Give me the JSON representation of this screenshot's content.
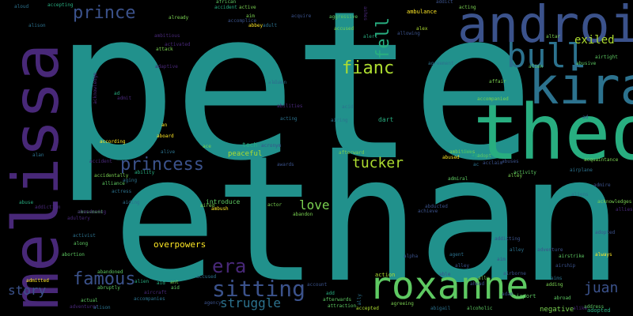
{
  "words": {
    "pete": "pete",
    "ethan": "ethan",
    "melissa": "melissa",
    "theo": "theo",
    "android": "android",
    "kira": "kira",
    "roxanne": "roxanne",
    "bull": "bull",
    "prince": "prince",
    "princess": "princess",
    "sitting": "sitting",
    "famous": "famous",
    "fianc": "fianc",
    "fell": "fell",
    "tucker": "tucker",
    "era": "era",
    "story": "story",
    "love": "love",
    "juan": "juan",
    "struggle": "struggle",
    "exiled": "exiled",
    "overpowers": "overpowers",
    "peaceful": "peaceful",
    "negative": "negative",
    "tech": "tech",
    "dart": "dart",
    "introduce": "introduce",
    "adopted": "adopted",
    "action": "action",
    "airport": "airport",
    "ambulance": "ambulance",
    "admiral": "admiral",
    "alley": "alley",
    "aired": "aired",
    "aircraft": "aircraft",
    "already": "already",
    "address": "address",
    "activist": "activist",
    "agent": "agent",
    "alive": "alive",
    "actor": "actor",
    "accepted": "accepted",
    "abandoned": "abandoned",
    "abuse": "abuse",
    "accidentally": "accidentally",
    "ability": "ability",
    "african": "african",
    "accident": "accident",
    "active": "active",
    "aggressive": "aggressive",
    "alert": "alert",
    "accused": "accused",
    "abbey": "abbey",
    "adult": "adult",
    "alex": "alex",
    "altar": "altar",
    "abusive": "abusive",
    "agreement": "agreement",
    "affair": "affair",
    "accompanied": "accompanied",
    "acquaintance": "acquaintance",
    "airplane": "airplane",
    "acknowledges": "acknowledges",
    "addicting": "addicting",
    "adventure": "adventure",
    "airstrike": "airstrike",
    "always": "always",
    "abortion": "abortion",
    "admitted": "admitted",
    "ambitious": "ambitious",
    "abused": "abused",
    "activity": "activity",
    "aloud": "aloud",
    "accepting": "accepting",
    "airtight": "airtight",
    "abandon": "abandon",
    "ago": "ago",
    "adding": "adding",
    "alien": "alien",
    "attack": "attack",
    "according": "according",
    "abroad": "abroad",
    "amusement": "amusement",
    "alliance": "alliance",
    "aboard": "aboard",
    "aiding": "aiding",
    "ambush": "ambush",
    "alien2": "alien",
    "adds": "adds",
    "adopt": "adopt",
    "acting": "acting",
    "attraction": "attraction",
    "agreeing": "agreeing",
    "abigail": "abigail",
    "alcoholic": "alcoholic",
    "afterwards": "afterwards",
    "ally": "ally",
    "afterward": "afterward",
    "ace": "ace",
    "aid": "aid",
    "ad": "ad",
    "an": "an",
    "aim": "aim",
    "ant": "ant",
    "ally2": "ally",
    "ac": "ac",
    "actress": "actress",
    "aging": "aging",
    "accompanies": "accompanies",
    "alison": "alison",
    "accused2": "accused",
    "add": "add",
    "aid2": "aid",
    "activated": "activated",
    "adaptive": "adaptive",
    "ambitious2": "ambitious",
    "allies": "allies",
    "accomplice": "accomplice",
    "acquire": "acquire",
    "addict": "addict",
    "addiction": "addiction",
    "acid": "acid",
    "alan": "alan",
    "alike": "alike",
    "abducted": "abducted",
    "achieve": "achieve",
    "admire": "admire",
    "ashes": "ashes",
    "alley2": "alley",
    "adopted2": "adopted",
    "airborne": "airborne",
    "account": "account",
    "airship": "airship",
    "adam": "adam",
    "allowing": "allowing",
    "acronym": "acronym",
    "awards": "awards",
    "abuses": "abuses",
    "acclaim": "acclaim",
    "alpha": "alpha",
    "agency": "agency",
    "able": "able",
    "ahead": "ahead",
    "abandoning": "abandoning",
    "actual": "actual",
    "abruptly": "abruptly",
    "accident2": "accident",
    "alley3": "alley",
    "aims": "aims",
    "adventurer": "adventurer",
    "aliens": "aliens",
    "alison2": "alison",
    "airing": "airing",
    "along": "along",
    "alive2": "alive",
    "acknowledge": "acknowledge",
    "adultery": "adultery",
    "acting2": "acting",
    "admit": "admit",
    "abilities": "abilities",
    "alien3": "alien",
    "aim2": "aim",
    "ad2": "ad"
  },
  "colors": {
    "teal": "#21918c",
    "green": "#5ec962",
    "light_green": "#7ad151",
    "yellow_green": "#addc30",
    "yellow": "#fde725",
    "purple": "#482878",
    "indigo": "#3b528b",
    "dark_purple": "#440154",
    "mid_teal": "#2c728e",
    "sea_green": "#28ae80"
  }
}
